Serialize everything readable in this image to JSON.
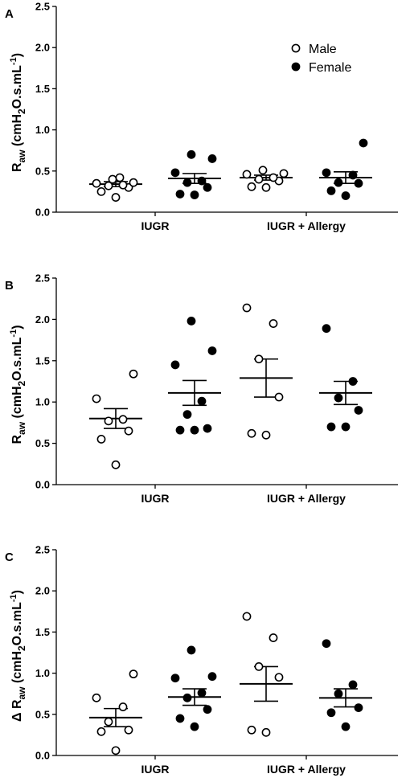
{
  "chart_data": [
    {
      "type": "scatter",
      "panel_label": "A",
      "ylabel_prefix": "",
      "ylabel_main": "R",
      "ylabel_sub": "aw",
      "ylabel_unit": "(cmH",
      "ylabel_unit_sub": "2",
      "ylabel_unit_mid": "O.s.mL",
      "ylabel_unit_sup": "-1",
      "ylabel_unit_end": ")",
      "ylim": [
        0,
        2.5
      ],
      "yticks": [
        "0.0",
        "0.5",
        "1.0",
        "1.5",
        "2.0",
        "2.5"
      ],
      "categories": [
        "IUGR",
        "IUGR + Allergy"
      ],
      "legend": {
        "position": "top-right",
        "entries": [
          {
            "label": "Male",
            "marker": "open-circle"
          },
          {
            "label": "Female",
            "marker": "filled-circle"
          }
        ]
      },
      "groups": [
        {
          "category": "IUGR",
          "series": "Male",
          "points": [
            0.18,
            0.25,
            0.3,
            0.32,
            0.33,
            0.35,
            0.36,
            0.4,
            0.42
          ],
          "mean": 0.34,
          "sem": 0.03
        },
        {
          "category": "IUGR",
          "series": "Female",
          "points": [
            0.21,
            0.22,
            0.3,
            0.36,
            0.38,
            0.48,
            0.65,
            0.7
          ],
          "mean": 0.41,
          "sem": 0.06
        },
        {
          "category": "IUGR + Allergy",
          "series": "Male",
          "points": [
            0.3,
            0.31,
            0.38,
            0.4,
            0.42,
            0.46,
            0.47,
            0.51
          ],
          "mean": 0.42,
          "sem": 0.03
        },
        {
          "category": "IUGR + Allergy",
          "series": "Female",
          "points": [
            0.2,
            0.26,
            0.35,
            0.36,
            0.45,
            0.48,
            0.84
          ],
          "mean": 0.42,
          "sem": 0.07
        }
      ]
    },
    {
      "type": "scatter",
      "panel_label": "B",
      "ylabel_prefix": "",
      "ylabel_main": "R",
      "ylabel_sub": "aw",
      "ylabel_unit": "(cmH",
      "ylabel_unit_sub": "2",
      "ylabel_unit_mid": "O.s.mL",
      "ylabel_unit_sup": "-1",
      "ylabel_unit_end": ")",
      "ylim": [
        0,
        2.5
      ],
      "yticks": [
        "0.0",
        "0.5",
        "1.0",
        "1.5",
        "2.0",
        "2.5"
      ],
      "categories": [
        "IUGR",
        "IUGR + Allergy"
      ],
      "legend": null,
      "groups": [
        {
          "category": "IUGR",
          "series": "Male",
          "points": [
            0.24,
            0.55,
            0.65,
            0.77,
            0.79,
            1.04,
            1.34
          ],
          "mean": 0.8,
          "sem": 0.12
        },
        {
          "category": "IUGR",
          "series": "Female",
          "points": [
            0.66,
            0.66,
            0.68,
            0.85,
            1.01,
            1.45,
            1.62,
            1.98
          ],
          "mean": 1.11,
          "sem": 0.15
        },
        {
          "category": "IUGR + Allergy",
          "series": "Male",
          "points": [
            0.6,
            0.62,
            1.06,
            1.52,
            1.95,
            2.14
          ],
          "mean": 1.29,
          "sem": 0.23
        },
        {
          "category": "IUGR + Allergy",
          "series": "Female",
          "points": [
            0.7,
            0.7,
            0.9,
            1.05,
            1.25,
            1.89
          ],
          "mean": 1.11,
          "sem": 0.14
        }
      ]
    },
    {
      "type": "scatter",
      "panel_label": "C",
      "ylabel_prefix": "Δ ",
      "ylabel_main": "R",
      "ylabel_sub": "aw",
      "ylabel_unit": "(cmH",
      "ylabel_unit_sub": "2",
      "ylabel_unit_mid": "O.s.mL",
      "ylabel_unit_sup": "-1",
      "ylabel_unit_end": ")",
      "ylim": [
        0,
        2.5
      ],
      "yticks": [
        "0.0",
        "0.5",
        "1.0",
        "1.5",
        "2.0",
        "2.5"
      ],
      "categories": [
        "IUGR",
        "IUGR + Allergy"
      ],
      "legend": null,
      "groups": [
        {
          "category": "IUGR",
          "series": "Male",
          "points": [
            0.06,
            0.29,
            0.31,
            0.41,
            0.59,
            0.7,
            0.99
          ],
          "mean": 0.46,
          "sem": 0.11
        },
        {
          "category": "IUGR",
          "series": "Female",
          "points": [
            0.35,
            0.45,
            0.56,
            0.7,
            0.76,
            0.94,
            0.96,
            1.28
          ],
          "mean": 0.71,
          "sem": 0.1
        },
        {
          "category": "IUGR + Allergy",
          "series": "Male",
          "points": [
            0.28,
            0.31,
            0.95,
            1.08,
            1.43,
            1.69
          ],
          "mean": 0.87,
          "sem": 0.21
        },
        {
          "category": "IUGR + Allergy",
          "series": "Female",
          "points": [
            0.35,
            0.52,
            0.58,
            0.75,
            0.86,
            1.36
          ],
          "mean": 0.7,
          "sem": 0.11
        }
      ]
    }
  ]
}
